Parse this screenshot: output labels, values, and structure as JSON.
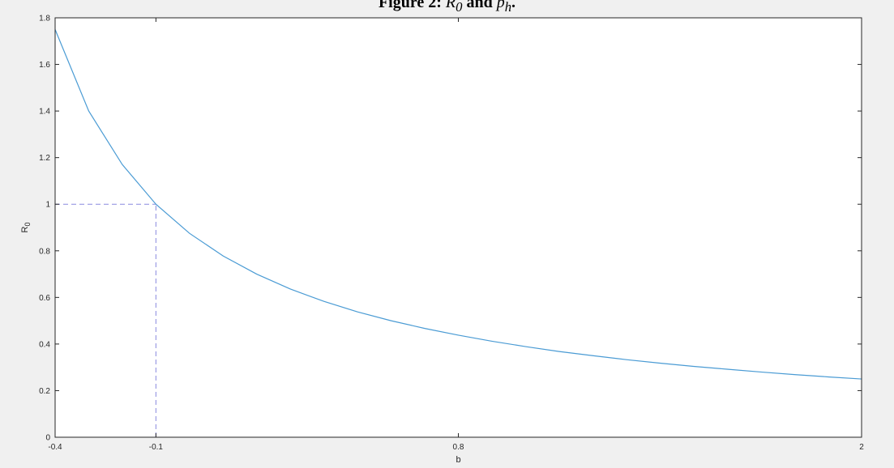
{
  "figure": {
    "caption_prefix": "Figure 2: ",
    "caption_math1": "R",
    "caption_sub1": "0",
    "caption_mid": " and ",
    "caption_math2": "p",
    "caption_sub2": "h",
    "caption_suffix": "."
  },
  "chart_data": {
    "type": "line",
    "title": "",
    "xlabel": "b",
    "ylabel": "R",
    "ylabel_subscript": "0",
    "xlim": [
      -0.4,
      2.0
    ],
    "ylim": [
      0,
      1.8
    ],
    "x_ticks": [
      -0.4,
      -0.1,
      0.8,
      2.0
    ],
    "x_tick_labels": [
      "-0.4",
      "-0.1",
      "0.8",
      "2"
    ],
    "y_ticks": [
      0,
      0.2,
      0.4,
      0.6,
      0.8,
      1.0,
      1.2,
      1.4,
      1.6,
      1.8
    ],
    "y_tick_labels": [
      "0",
      "0.2",
      "0.4",
      "0.6",
      "0.8",
      "1",
      "1.2",
      "1.4",
      "1.6",
      "1.8"
    ],
    "grid": false,
    "colors": {
      "series": "#4a9bd4",
      "reference": "#8a8adf",
      "axis": "#262626"
    },
    "series": [
      {
        "x": [
          -0.4,
          -0.3,
          -0.2,
          -0.1,
          0.0,
          0.1,
          0.2,
          0.3,
          0.4,
          0.5,
          0.6,
          0.7,
          0.8,
          0.9,
          1.0,
          1.1,
          1.2,
          1.3,
          1.4,
          1.5,
          1.6,
          1.7,
          1.8,
          1.9,
          2.0
        ],
        "y": [
          1.75,
          1.4,
          1.17,
          1.0,
          0.875,
          0.778,
          0.7,
          0.636,
          0.583,
          0.538,
          0.5,
          0.467,
          0.438,
          0.412,
          0.389,
          0.368,
          0.35,
          0.333,
          0.318,
          0.304,
          0.292,
          0.28,
          0.269,
          0.259,
          0.25
        ]
      }
    ],
    "reference_lines": [
      {
        "orientation": "horizontal",
        "y": 1.0,
        "x_from": -0.4,
        "x_to": -0.1,
        "style": "dashed"
      },
      {
        "orientation": "vertical",
        "x": -0.1,
        "y_from": 0,
        "y_to": 1.0,
        "style": "dashed"
      }
    ]
  }
}
